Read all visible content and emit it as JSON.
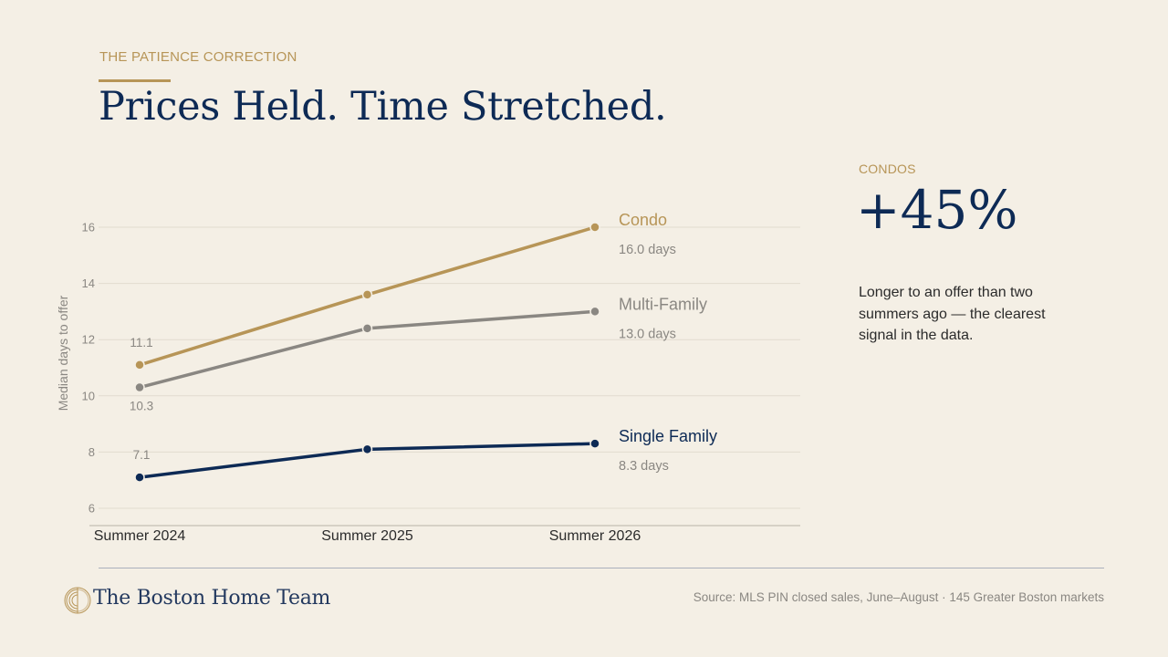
{
  "header": {
    "eyebrow": "THE PATIENCE CORRECTION",
    "title": "Prices Held. Time Stretched."
  },
  "chart_data": {
    "type": "line",
    "ylabel": "Median days to offer",
    "xlabel": "",
    "categories": [
      "Summer 2024",
      "Summer 2025",
      "Summer 2026"
    ],
    "ylim": [
      6,
      16
    ],
    "yticks": [
      6,
      8,
      10,
      12,
      14,
      16
    ],
    "grid": true,
    "series": [
      {
        "name": "Condo",
        "values": [
          11.1,
          13.6,
          16.0
        ],
        "color": "#b79557",
        "start_label": "11.1",
        "end_label": "16.0 days"
      },
      {
        "name": "Multi-Family",
        "values": [
          10.3,
          12.4,
          13.0
        ],
        "color": "#8a8782",
        "start_label": "10.3",
        "end_label": "13.0 days"
      },
      {
        "name": "Single Family",
        "values": [
          7.1,
          8.1,
          8.3
        ],
        "color": "#0d2a55",
        "start_label": "7.1",
        "end_label": "8.3 days"
      }
    ]
  },
  "callout": {
    "eyebrow": "CONDOS",
    "value": "+45%",
    "text": "Longer to an offer than two summers ago — the clearest signal in the data."
  },
  "footer": {
    "brand": "The Boston Home Team",
    "source": "Source: MLS PIN closed sales, June–August · 145 Greater Boston markets"
  },
  "colors": {
    "background": "#f4efe5",
    "accent_gold": "#b79557",
    "navy": "#0d2a55",
    "grey": "#8a8782"
  },
  "icons": {
    "logo": "sunburst-logo-icon"
  }
}
